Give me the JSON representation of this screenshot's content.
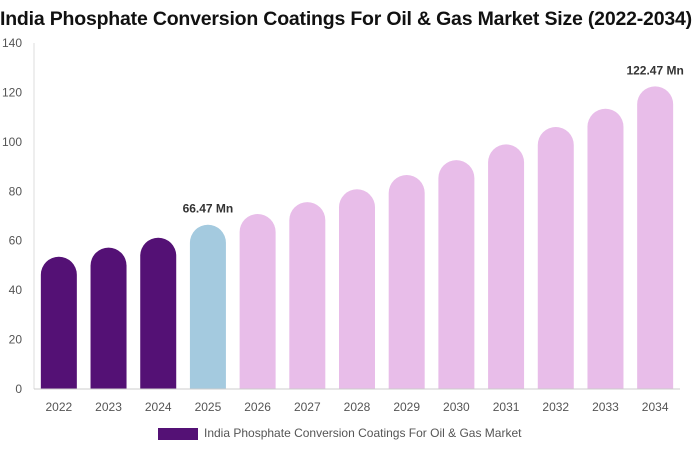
{
  "chart_data": {
    "type": "bar",
    "title": "India Phosphate Conversion Coatings For Oil & Gas Market Size (2022-2034)",
    "xlabel": "",
    "ylabel": "",
    "categories": [
      "2022",
      "2023",
      "2024",
      "2025",
      "2026",
      "2027",
      "2028",
      "2029",
      "2030",
      "2031",
      "2032",
      "2033",
      "2034"
    ],
    "series": [
      {
        "name": "India Phosphate Conversion Coatings For Oil & Gas Market",
        "values": [
          53.5,
          57.2,
          61.2,
          66.47,
          70.8,
          75.6,
          80.8,
          86.6,
          92.6,
          99.0,
          106.0,
          113.4,
          122.47
        ]
      }
    ],
    "ylim": [
      0,
      140
    ],
    "yticks": [
      0,
      20,
      40,
      60,
      80,
      100,
      120,
      140
    ],
    "data_labels": [
      {
        "index": 3,
        "text": "66.47 Mn"
      },
      {
        "index": 12,
        "text": "122.47 Mn"
      }
    ],
    "bar_colors": [
      "#541175",
      "#541175",
      "#541175",
      "#a4cadf",
      "#e8bde9",
      "#e8bde9",
      "#e8bde9",
      "#e8bde9",
      "#e8bde9",
      "#e8bde9",
      "#e8bde9",
      "#e8bde9",
      "#e8bde9"
    ],
    "legend": {
      "position": "bottom",
      "color": "#541175"
    },
    "grid": false
  }
}
